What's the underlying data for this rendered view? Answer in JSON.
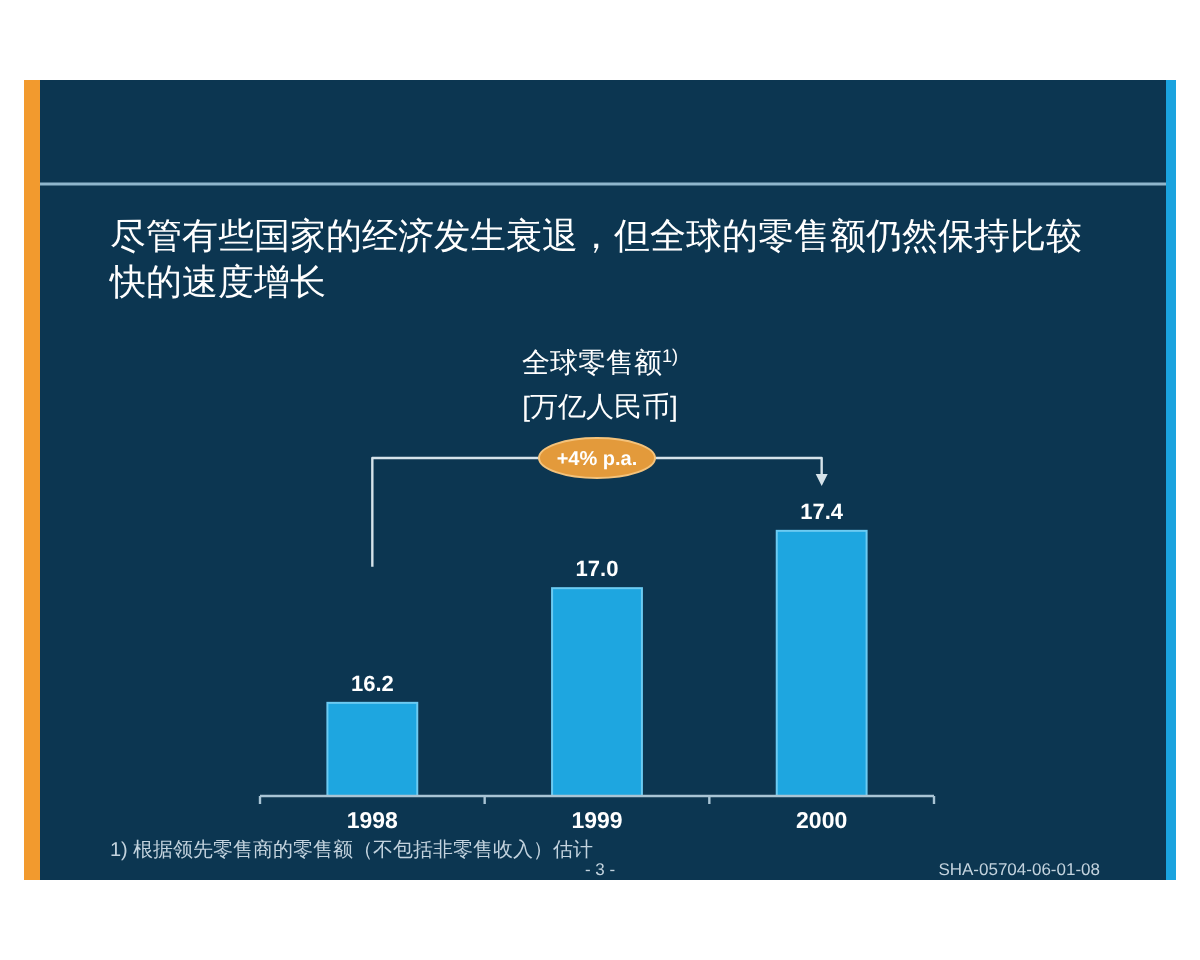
{
  "chart_data": {
    "type": "bar",
    "title": "尽管有些国家的经济发生衰退，但全球的零售额仍然保持比较快的速度增长",
    "subtitle": "全球零售额$^{1)}$",
    "ylabel": "[万亿人民币]",
    "categories": [
      "1998",
      "1999",
      "2000"
    ],
    "values": [
      16.2,
      17.0,
      17.4
    ],
    "value_labels": [
      "16.2",
      "17.0",
      "17.4"
    ],
    "color": "#1ea6e0",
    "ylim": [
      15.55,
      17.95
    ],
    "annotations": [
      "+4% p.a.",
      "1) 根据领先零售商的零售额（不包括非零售收入）估计",
      "- 3 -",
      "SHA-05704-06-01-08"
    ]
  }
}
